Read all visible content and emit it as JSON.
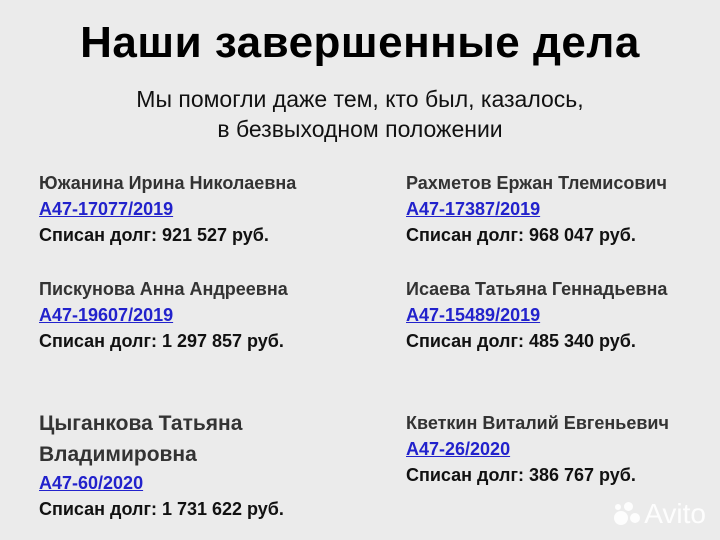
{
  "title": "Наши завершенные дела",
  "subtitle": [
    "Мы помогли даже тем, кто был, казалось,",
    "в безвыходном положении"
  ],
  "cases": [
    {
      "name": "Южанина Ирина Николаевна",
      "case": "А47-17077/2019",
      "amount": "Списан долг: 921 527 руб."
    },
    {
      "name": "Рахметов Ержан Тлемисович",
      "case": "А47-17387/2019",
      "amount": "Списан долг: 968 047 руб."
    },
    {
      "name": "Пискунова Анна Андреевна",
      "case": "А47-19607/2019",
      "amount": "Списан долг: 1 297 857 руб."
    },
    {
      "name": "Исаева Татьяна Геннадьевна",
      "case": "А47-15489/2019",
      "amount": "Списан долг: 485 340 руб."
    },
    {
      "name": "Цыганкова Татьяна Владимировна",
      "name_lines": [
        "Цыганкова Татьяна",
        "Владимировна"
      ],
      "case": "А47-60/2020",
      "amount": "Списан долг: 1 731 622 руб."
    },
    {
      "name": "Кветкин Виталий Евгеньевич",
      "case": "А47-26/2020",
      "amount": "Списан долг: 386 767 руб."
    }
  ],
  "watermark": "Avito",
  "colors": {
    "background": "#ebebeb",
    "link": "#2222cc"
  }
}
